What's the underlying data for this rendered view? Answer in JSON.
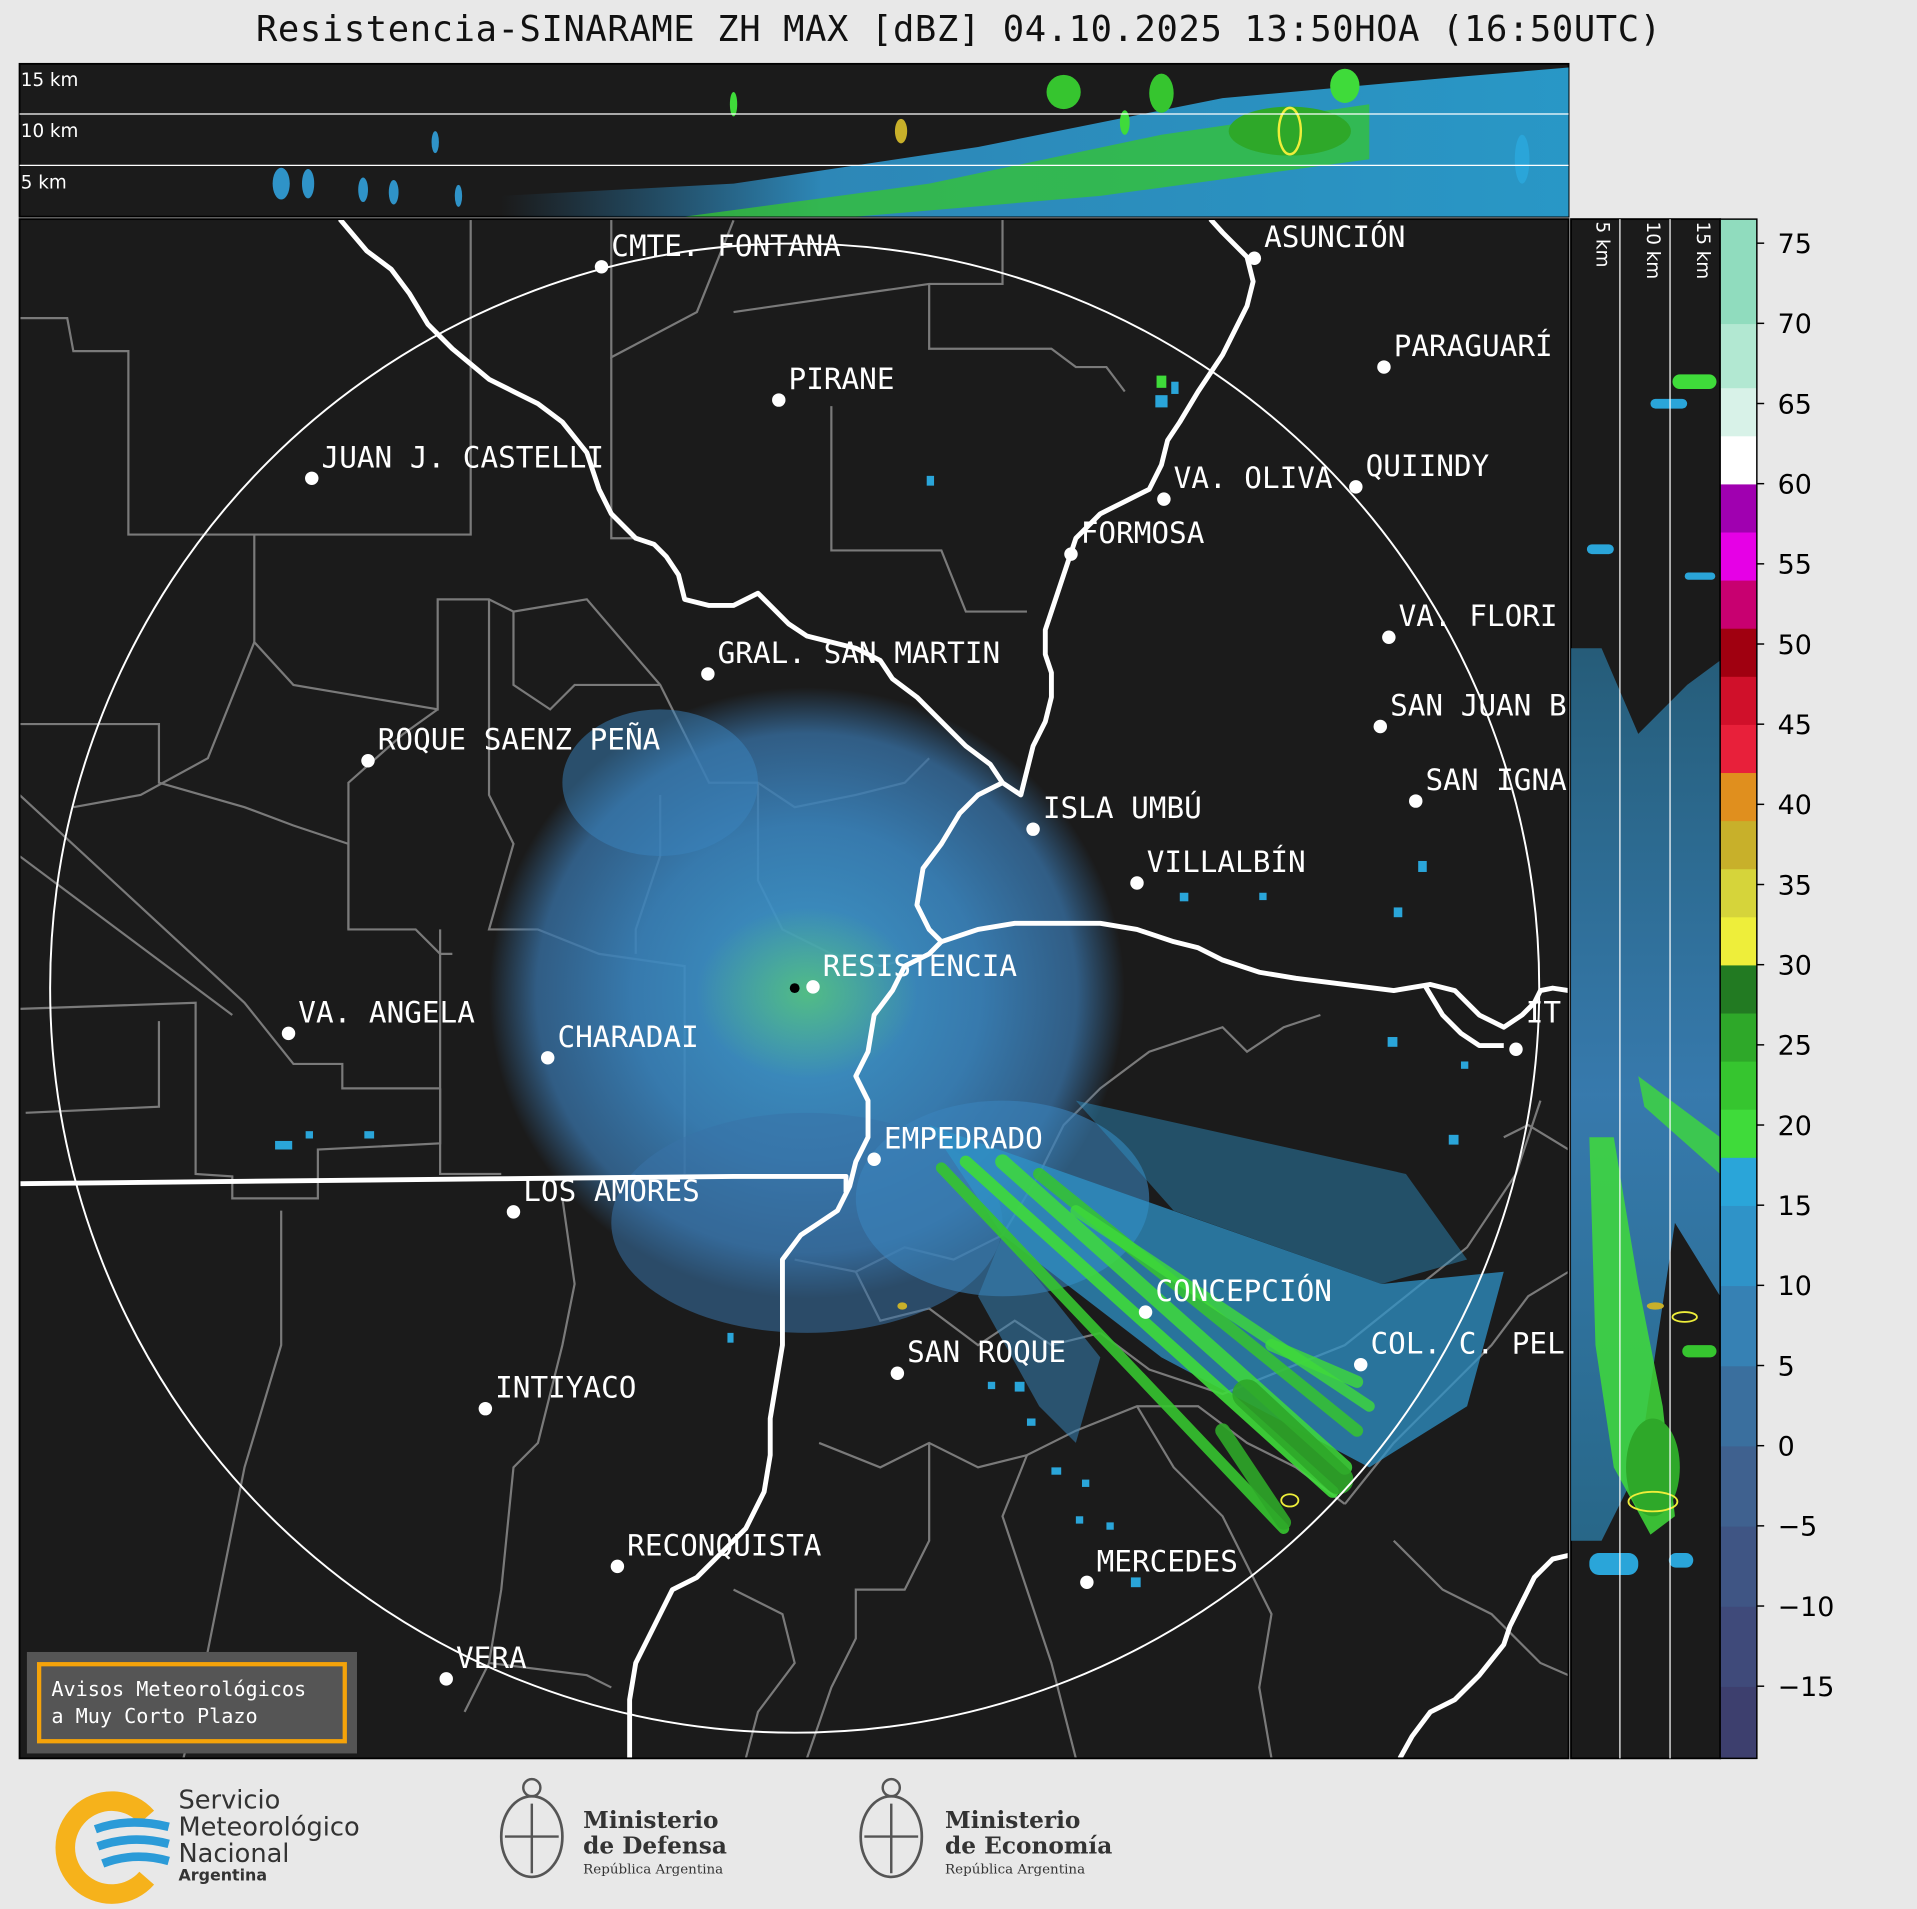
{
  "title": "Resistencia-SINARAME ZH MAX [dBZ] 04.10.2025 13:50HOA (16:50UTC)",
  "top_profile": {
    "labels": [
      "15 km",
      "10 km",
      "5 km"
    ]
  },
  "side_profile": {
    "labels": [
      "5 km",
      "10 km",
      "15 km"
    ]
  },
  "colorbar": {
    "ticks": [
      "75",
      "70",
      "65",
      "60",
      "55",
      "50",
      "45",
      "40",
      "35",
      "30",
      "25",
      "20",
      "15",
      "10",
      "5",
      "0",
      "−5",
      "−10",
      "−15"
    ],
    "values": [
      75,
      70,
      65,
      60,
      55,
      50,
      45,
      40,
      35,
      30,
      25,
      20,
      15,
      10,
      5,
      0,
      -5,
      -10,
      -15
    ],
    "range": [
      -19.5,
      76.5
    ],
    "segments": [
      {
        "from": -19.5,
        "to": -15,
        "color": "#3d3f6e"
      },
      {
        "from": -15,
        "to": -10,
        "color": "#3f4a7a"
      },
      {
        "from": -10,
        "to": -5,
        "color": "#3f5584"
      },
      {
        "from": -5,
        "to": 0,
        "color": "#3f618f"
      },
      {
        "from": 0,
        "to": 5,
        "color": "#3a6f9e"
      },
      {
        "from": 5,
        "to": 10,
        "color": "#3681b4"
      },
      {
        "from": 10,
        "to": 15,
        "color": "#2f93c8"
      },
      {
        "from": 15,
        "to": 18,
        "color": "#2aa5d9"
      },
      {
        "from": 18,
        "to": 21,
        "color": "#3fdb3a"
      },
      {
        "from": 21,
        "to": 24,
        "color": "#36c52f"
      },
      {
        "from": 24,
        "to": 27,
        "color": "#2ea829"
      },
      {
        "from": 27,
        "to": 30,
        "color": "#227a22"
      },
      {
        "from": 30,
        "to": 33,
        "color": "#eeee3a"
      },
      {
        "from": 33,
        "to": 36,
        "color": "#d6d43a"
      },
      {
        "from": 36,
        "to": 39,
        "color": "#c8b02a"
      },
      {
        "from": 39,
        "to": 42,
        "color": "#e08f1e"
      },
      {
        "from": 42,
        "to": 45,
        "color": "#e8203a"
      },
      {
        "from": 45,
        "to": 48,
        "color": "#d0102a"
      },
      {
        "from": 48,
        "to": 51,
        "color": "#a00010"
      },
      {
        "from": 51,
        "to": 54,
        "color": "#c80070"
      },
      {
        "from": 54,
        "to": 57,
        "color": "#e600e6"
      },
      {
        "from": 57,
        "to": 60,
        "color": "#a000b0"
      },
      {
        "from": 60,
        "to": 63,
        "color": "#ffffff"
      },
      {
        "from": 63,
        "to": 66,
        "color": "#d8f2e8"
      },
      {
        "from": 66,
        "to": 70,
        "color": "#b2e8d2"
      },
      {
        "from": 70,
        "to": 76.5,
        "color": "#90dcbe"
      }
    ]
  },
  "cities": [
    {
      "name": "CMTE. FONTANA"
    },
    {
      "name": "ASUNCIÓN"
    },
    {
      "name": "PIRANE"
    },
    {
      "name": "PARAGUARÍ"
    },
    {
      "name": "JUAN J. CASTELLI"
    },
    {
      "name": "VA. OLIVA"
    },
    {
      "name": "QUIINDY"
    },
    {
      "name": "FORMOSA"
    },
    {
      "name": "VA. FLORI"
    },
    {
      "name": "GRAL. SAN MARTIN"
    },
    {
      "name": "SAN JUAN B"
    },
    {
      "name": "ROQUE SAENZ PEÑA"
    },
    {
      "name": "SAN IGNA"
    },
    {
      "name": "ISLA UMBÚ"
    },
    {
      "name": "VILLALBÍN"
    },
    {
      "name": "RESISTENCIA"
    },
    {
      "name": "VA. ANGELA"
    },
    {
      "name": "CHARADAI"
    },
    {
      "name": "IT"
    },
    {
      "name": "EMPEDRADO"
    },
    {
      "name": "LOS AMORES"
    },
    {
      "name": "CONCEPCIÓN"
    },
    {
      "name": "COL. C. PEL"
    },
    {
      "name": "SAN ROQUE"
    },
    {
      "name": "INTIYACO"
    },
    {
      "name": "RECONQUISTA"
    },
    {
      "name": "MERCEDES"
    },
    {
      "name": "VERA"
    }
  ],
  "notice": {
    "line1": "Avisos Meteorológicos",
    "line2": "a Muy Corto Plazo"
  },
  "logos": {
    "smn": {
      "line1": "Servicio",
      "line2": "Meteorológico",
      "line3": "Nacional",
      "line4": "Argentina"
    },
    "defensa": {
      "line1": "Ministerio",
      "line2": "de Defensa",
      "line3": "República Argentina"
    },
    "economia": {
      "line1": "Ministerio",
      "line2": "de Economía",
      "line3": "República Argentina"
    }
  }
}
